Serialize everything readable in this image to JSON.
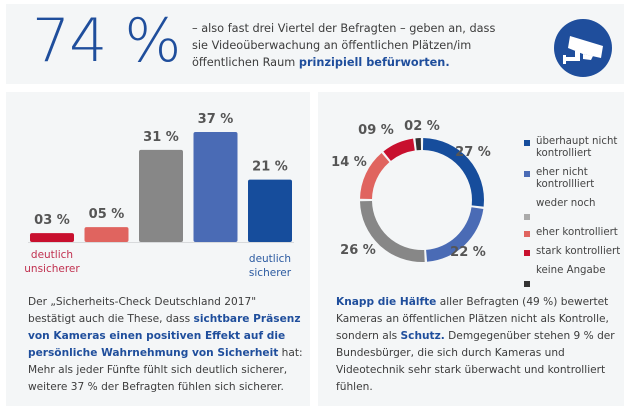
{
  "header": {
    "big_percent": "74 %",
    "intro_plain_1": "– also fast drei Viertel der Befragten – geben an, dass sie Videoüberwachung an öffentlichen Plätzen/im öffentlichen Raum ",
    "intro_highlight": "prinzipiell befürworten.",
    "icon": "surveillance-camera-icon",
    "accent_color": "#1f4e9c"
  },
  "left": {
    "text_1": "Der „Sicherheits-Check Deutschland 2017\" bestätigt auch die These, dass ",
    "text_highlight": "sichtbare Präsenz von Kameras einen positiven Effekt auf die persönliche Wahrnehmung von Sicherheit",
    "text_2": " hat: Mehr als jeder Fünfte fühlt sich deutlich sicherer, weitere 37 % der Befragten fühlen sich sicherer."
  },
  "right": {
    "text_highlight_1": "Knapp die Hälfte",
    "text_1": " aller Befragten (49 %) bewertet Kameras an öffentlichen Plätzen nicht als Kontrolle, sondern als ",
    "text_highlight_2": "Schutz.",
    "text_2": " Demgegenüber stehen 9 % der Bundesbürger, die sich durch Kameras und Videotechnik sehr stark überwacht und kontrolliert fühlen."
  },
  "chart_data": [
    {
      "type": "bar",
      "title": "",
      "categories": [
        "deutlich unsicherer",
        "",
        "",
        "",
        "deutlich sicherer"
      ],
      "values": [
        3,
        5,
        31,
        37,
        21
      ],
      "value_labels": [
        "03 %",
        "05 %",
        "31 %",
        "37 %",
        "21 %"
      ],
      "colors": [
        "#c8102e",
        "#e0645f",
        "#878787",
        "#4a6bb5",
        "#164d9c"
      ],
      "axis_labels": {
        "left": {
          "line1": "deutlich",
          "line2": "unsicherer",
          "color": "#c0304f"
        },
        "right": {
          "line1": "deutlich",
          "line2": "sicherer",
          "color": "#2b5aa0"
        }
      },
      "xlabel": "",
      "ylabel": "",
      "ylim": [
        0,
        40
      ],
      "grid": false
    },
    {
      "type": "pie",
      "variant": "donut",
      "title": "",
      "slices": [
        {
          "label": "überhaupt nicht kontrolliert",
          "value": 27,
          "value_label": "27 %",
          "color": "#164d9c"
        },
        {
          "label": "eher nicht kontrollliert",
          "value": 22,
          "value_label": "22 %",
          "color": "#4a6bb5"
        },
        {
          "label": "weder noch",
          "value": 26,
          "value_label": "26 %",
          "color": "#878787"
        },
        {
          "label": "eher kontrolliert",
          "value": 14,
          "value_label": "14 %",
          "color": "#e0645f"
        },
        {
          "label": "stark kontrolliert",
          "value": 9,
          "value_label": "09 %",
          "color": "#c8102e"
        },
        {
          "label": "keine Angabe",
          "value": 2,
          "value_label": "02 %",
          "color": "#333333"
        }
      ],
      "legend": {
        "placement": "right",
        "items": [
          {
            "line1": "überhaupt nicht",
            "line2": "kontrolliert",
            "color": "#164d9c"
          },
          {
            "line1": "eher nicht",
            "line2": "kontrollliert",
            "color": "#4a6bb5"
          },
          {
            "line1": "weder noch",
            "line2": "",
            "color": "#aaaaaa"
          },
          {
            "line1": "eher kontrolliert",
            "line2": "",
            "color": "#e0645f"
          },
          {
            "line1": "stark kontrolliert",
            "line2": "",
            "color": "#c8102e"
          },
          {
            "line1": "keine Angabe",
            "line2": "",
            "color": "#333333"
          }
        ]
      }
    }
  ]
}
